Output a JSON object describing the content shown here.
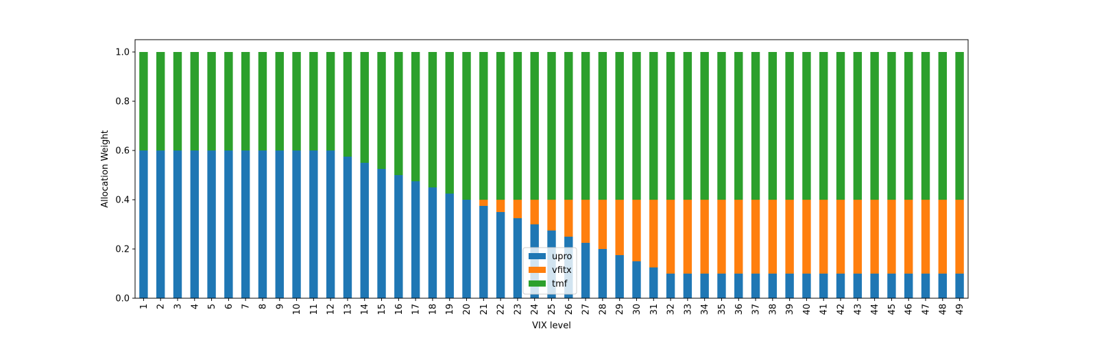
{
  "chart_data": {
    "type": "bar",
    "stacked": true,
    "xlabel": "VIX level",
    "ylabel": "Allocation Weight",
    "ylim": [
      0,
      1.05
    ],
    "yticks": [
      "0.0",
      "0.2",
      "0.4",
      "0.6",
      "0.8",
      "1.0"
    ],
    "ytick_values": [
      0,
      0.2,
      0.4,
      0.6,
      0.8,
      1.0
    ],
    "categories": [
      "1",
      "2",
      "3",
      "4",
      "5",
      "6",
      "7",
      "8",
      "9",
      "10",
      "11",
      "12",
      "13",
      "14",
      "15",
      "16",
      "17",
      "18",
      "19",
      "20",
      "21",
      "22",
      "23",
      "24",
      "25",
      "26",
      "27",
      "28",
      "29",
      "30",
      "31",
      "32",
      "33",
      "34",
      "35",
      "36",
      "37",
      "38",
      "39",
      "40",
      "41",
      "42",
      "43",
      "44",
      "45",
      "46",
      "47",
      "48",
      "49"
    ],
    "series": [
      {
        "name": "upro",
        "color": "#1f77b4",
        "values": [
          0.6,
          0.6,
          0.6,
          0.6,
          0.6,
          0.6,
          0.6,
          0.6,
          0.6,
          0.6,
          0.6,
          0.6,
          0.575,
          0.55,
          0.525,
          0.5,
          0.475,
          0.45,
          0.425,
          0.4,
          0.375,
          0.35,
          0.325,
          0.3,
          0.275,
          0.25,
          0.225,
          0.2,
          0.175,
          0.15,
          0.125,
          0.1,
          0.1,
          0.1,
          0.1,
          0.1,
          0.1,
          0.1,
          0.1,
          0.1,
          0.1,
          0.1,
          0.1,
          0.1,
          0.1,
          0.1,
          0.1,
          0.1,
          0.1
        ]
      },
      {
        "name": "vfitx",
        "color": "#ff7f0e",
        "values": [
          0,
          0,
          0,
          0,
          0,
          0,
          0,
          0,
          0,
          0,
          0,
          0,
          0,
          0,
          0,
          0,
          0,
          0,
          0,
          0,
          0.025,
          0.05,
          0.075,
          0.1,
          0.125,
          0.15,
          0.175,
          0.2,
          0.225,
          0.25,
          0.275,
          0.3,
          0.3,
          0.3,
          0.3,
          0.3,
          0.3,
          0.3,
          0.3,
          0.3,
          0.3,
          0.3,
          0.3,
          0.3,
          0.3,
          0.3,
          0.3,
          0.3,
          0.3
        ]
      },
      {
        "name": "tmf",
        "color": "#2ca02c",
        "values": [
          0.4,
          0.4,
          0.4,
          0.4,
          0.4,
          0.4,
          0.4,
          0.4,
          0.4,
          0.4,
          0.4,
          0.4,
          0.425,
          0.45,
          0.475,
          0.5,
          0.525,
          0.55,
          0.575,
          0.6,
          0.6,
          0.6,
          0.6,
          0.6,
          0.6,
          0.6,
          0.6,
          0.6,
          0.6,
          0.6,
          0.6,
          0.6,
          0.6,
          0.6,
          0.6,
          0.6,
          0.6,
          0.6,
          0.6,
          0.6,
          0.6,
          0.6,
          0.6,
          0.6,
          0.6,
          0.6,
          0.6,
          0.6,
          0.6
        ]
      }
    ],
    "legend": {
      "position": "lower-center",
      "entries": [
        "upro",
        "vfitx",
        "tmf"
      ]
    },
    "grid": false
  }
}
